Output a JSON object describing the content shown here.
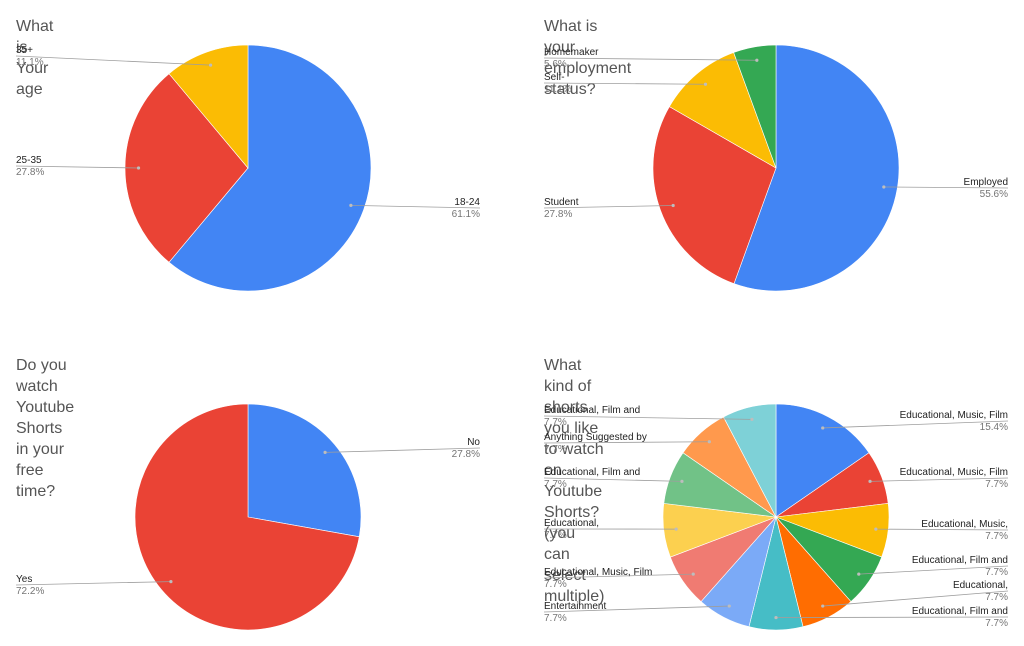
{
  "chart_data": [
    {
      "type": "pie",
      "title": "What is Your age",
      "slices": [
        {
          "label": "18-24",
          "value": 61.1,
          "pct": "61.1%",
          "color": "#4285F4"
        },
        {
          "label": "25-35",
          "value": 27.8,
          "pct": "27.8%",
          "color": "#EA4335"
        },
        {
          "label": "35+",
          "value": 11.1,
          "pct": "11.1%",
          "color": "#FBBC04"
        }
      ]
    },
    {
      "type": "pie",
      "title": "What is your employment status?",
      "slices": [
        {
          "label": "Employed",
          "value": 55.6,
          "pct": "55.6%",
          "color": "#4285F4"
        },
        {
          "label": "Student",
          "value": 27.8,
          "pct": "27.8%",
          "color": "#EA4335"
        },
        {
          "label": "Self-",
          "value": 11.1,
          "pct": "11.1%",
          "color": "#FBBC04"
        },
        {
          "label": "Homemaker",
          "value": 5.6,
          "pct": "5.6%",
          "color": "#34A853"
        }
      ]
    },
    {
      "type": "pie",
      "title": "Do you watch Youtube Shorts in your free time?",
      "slices": [
        {
          "label": "No",
          "value": 27.8,
          "pct": "27.8%",
          "color": "#4285F4"
        },
        {
          "label": "Yes",
          "value": 72.2,
          "pct": "72.2%",
          "color": "#EA4335"
        }
      ]
    },
    {
      "type": "pie",
      "title": "What kind of shorts you like to watch on Youtube Shorts? (you can select multiple)",
      "title_lines": [
        "What kind of shorts you like to watch on Youtube Shorts? (you",
        "can select multiple)"
      ],
      "slices": [
        {
          "label": "Educational, Music, Film",
          "value": 15.4,
          "pct": "15.4%",
          "color": "#4285F4"
        },
        {
          "label": "Educational, Music, Film",
          "value": 7.7,
          "pct": "7.7%",
          "color": "#EA4335"
        },
        {
          "label": "Educational, Music,",
          "value": 7.7,
          "pct": "7.7%",
          "color": "#FBBC04"
        },
        {
          "label": "Educational, Film and",
          "value": 7.7,
          "pct": "7.7%",
          "color": "#34A853"
        },
        {
          "label": "Educational,",
          "value": 7.7,
          "pct": "7.7%",
          "color": "#FF6D01"
        },
        {
          "label": "Educational, Film and",
          "value": 7.7,
          "pct": "7.7%",
          "color": "#46BDC6"
        },
        {
          "label": "Entertainment",
          "value": 7.7,
          "pct": "7.7%",
          "color": "#7BAAF7"
        },
        {
          "label": "Educational, Music, Film",
          "value": 7.7,
          "pct": "7.7%",
          "color": "#F07B72"
        },
        {
          "label": "Educational,",
          "value": 7.7,
          "pct": "7.7%",
          "color": "#FCD04F"
        },
        {
          "label": "Educational, Film and",
          "value": 7.7,
          "pct": "7.7%",
          "color": "#71C287"
        },
        {
          "label": "Anything Suggested by",
          "value": 7.7,
          "pct": "7.7%",
          "color": "#FF994D"
        },
        {
          "label": "Educational, Film and",
          "value": 7.7,
          "pct": "7.7%",
          "color": "#7ED1D7"
        }
      ]
    }
  ]
}
